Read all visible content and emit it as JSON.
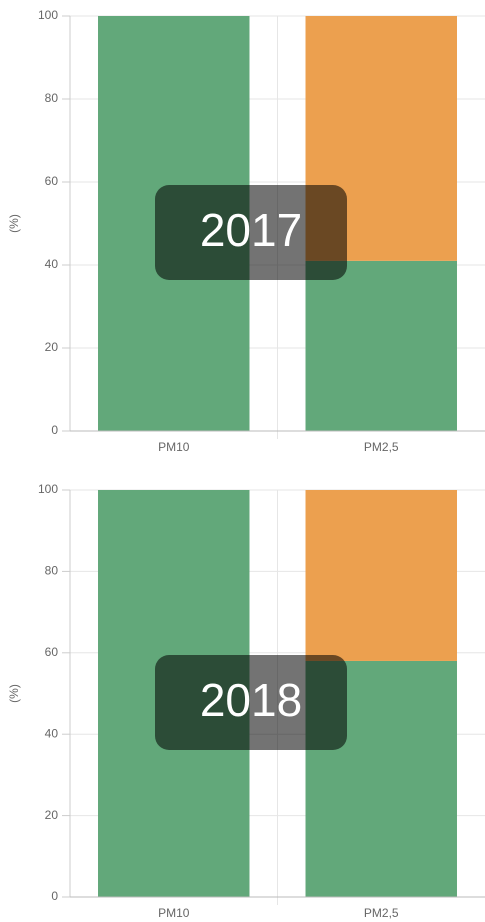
{
  "chart_data": [
    {
      "type": "bar",
      "stacked": true,
      "annotation": "2017",
      "ylabel": "(%)",
      "categories": [
        "PM10",
        "PM2,5"
      ],
      "series": [
        {
          "color": "#62a87a",
          "values": [
            100,
            41
          ]
        },
        {
          "color": "#eca04f",
          "values": [
            0,
            59
          ]
        }
      ],
      "ylim": [
        0,
        100
      ],
      "yticks": [
        0,
        20,
        40,
        60,
        80,
        100
      ],
      "grid": true
    },
    {
      "type": "bar",
      "stacked": true,
      "annotation": "2018",
      "ylabel": "(%)",
      "categories": [
        "PM10",
        "PM2,5"
      ],
      "series": [
        {
          "color": "#62a87a",
          "values": [
            100,
            58
          ]
        },
        {
          "color": "#eca04f",
          "values": [
            0,
            42
          ]
        }
      ],
      "ylim": [
        0,
        100
      ],
      "yticks": [
        0,
        20,
        40,
        60,
        80,
        100
      ],
      "grid": true
    }
  ]
}
